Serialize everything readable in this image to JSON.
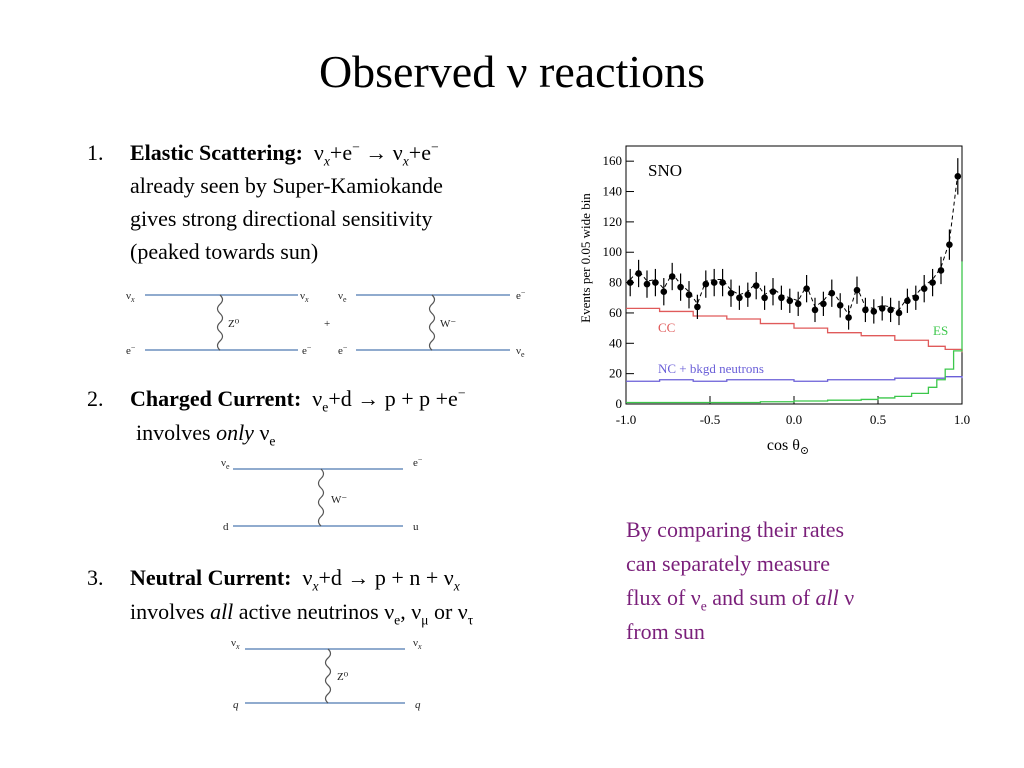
{
  "title": "Observed ν reactions",
  "items": [
    {
      "num": "1.",
      "heading": "Elastic Scattering:",
      "eq": [
        "ν",
        "x",
        "+e",
        "−",
        " → ν",
        "x",
        "+e",
        "−"
      ],
      "lines": [
        "already seen by Super-Kamiokande",
        "gives strong directional sensitivity",
        "(peaked towards sun)"
      ]
    },
    {
      "num": "2.",
      "heading": "Charged Current:",
      "eq": [
        "ν",
        "e",
        "+d → p + p +e",
        "−"
      ],
      "line_pre": "involves ",
      "line_em": "only",
      "line_nu": " ν",
      "line_sub": "e"
    },
    {
      "num": "3.",
      "heading": "Neutral Current:",
      "eq": [
        "ν",
        "x",
        "+d → p + n + ν",
        "x"
      ],
      "line_pre": "involves ",
      "line_em": "all",
      "line_post": " active neutrinos ν",
      "s1": "e",
      "c1": ", ν",
      "s2": "μ",
      "c2": " or ν",
      "s3": "τ"
    }
  ],
  "diagrams": {
    "es_z": {
      "tl": "ν",
      "tl_s": "x",
      "tr": "ν",
      "tr_s": "x",
      "bl": "e",
      "bl_s": "−",
      "br": "e",
      "br_s": "−",
      "boson": "Z⁰"
    },
    "plus": "+",
    "es_w": {
      "tl": "ν",
      "tl_s": "e",
      "tr": "e",
      "tr_s": "−",
      "bl": "e",
      "bl_s": "−",
      "br": "ν",
      "br_s": "e",
      "boson": "W⁻"
    },
    "cc": {
      "tl": "ν",
      "tl_s": "e",
      "tr": "e",
      "tr_s": "−",
      "bl": "d",
      "br": "u",
      "boson": "W⁻"
    },
    "nc": {
      "tl": "ν",
      "tl_s": "x",
      "tr": "ν",
      "tr_s": "x",
      "bl": "q",
      "br": "q",
      "boson": "Z⁰"
    }
  },
  "chart_data": {
    "type": "scatter",
    "title": "SNO",
    "xlabel": "cos θ",
    "xlabel_sub": "⊙",
    "ylabel": "Events per 0.05 wide bin",
    "xlim": [
      -1.0,
      1.0
    ],
    "ylim": [
      0,
      170
    ],
    "xticks": [
      "-1.0",
      "-0.5",
      "0.0",
      "0.5",
      "1.0"
    ],
    "yticks": [
      "0",
      "20",
      "40",
      "60",
      "80",
      "100",
      "120",
      "140",
      "160"
    ],
    "series": [
      {
        "name": "data",
        "x": [
          -0.975,
          -0.925,
          -0.875,
          -0.825,
          -0.775,
          -0.725,
          -0.675,
          -0.625,
          -0.575,
          -0.525,
          -0.475,
          -0.425,
          -0.375,
          -0.325,
          -0.275,
          -0.225,
          -0.175,
          -0.125,
          -0.075,
          -0.025,
          0.025,
          0.075,
          0.125,
          0.175,
          0.225,
          0.275,
          0.325,
          0.375,
          0.425,
          0.475,
          0.525,
          0.575,
          0.625,
          0.675,
          0.725,
          0.775,
          0.825,
          0.875,
          0.925,
          0.975
        ],
        "values": [
          80,
          86,
          79,
          80,
          74,
          84,
          77,
          72,
          64,
          79,
          80,
          80,
          73,
          70,
          72,
          78,
          70,
          74,
          70,
          68,
          66,
          76,
          62,
          66,
          73,
          65,
          57,
          75,
          62,
          61,
          63,
          62,
          60,
          68,
          70,
          76,
          80,
          88,
          105,
          150
        ],
        "errors": [
          9,
          9,
          9,
          9,
          9,
          9,
          9,
          9,
          8,
          9,
          9,
          9,
          9,
          8,
          8,
          9,
          8,
          9,
          8,
          8,
          8,
          9,
          8,
          8,
          9,
          8,
          8,
          9,
          8,
          8,
          8,
          8,
          8,
          8,
          8,
          9,
          9,
          9,
          10,
          12
        ]
      },
      {
        "name": "CC",
        "x": [
          -1.0,
          -0.8,
          -0.6,
          -0.4,
          -0.2,
          0.0,
          0.2,
          0.4,
          0.6,
          0.8,
          0.9,
          1.0
        ],
        "values": [
          63,
          61,
          58,
          56,
          53,
          50,
          47,
          45,
          42,
          38,
          36,
          34
        ]
      },
      {
        "name": "NC + bkgd neutrons",
        "x": [
          -1.0,
          -0.8,
          -0.6,
          -0.4,
          -0.2,
          0.0,
          0.2,
          0.4,
          0.6,
          0.8,
          0.9,
          1.0
        ],
        "values": [
          15,
          16,
          15,
          16,
          16,
          15,
          16,
          16,
          17,
          17,
          18,
          17
        ]
      },
      {
        "name": "ES",
        "x": [
          -1.0,
          -0.8,
          -0.6,
          -0.4,
          -0.2,
          0.0,
          0.2,
          0.4,
          0.5,
          0.6,
          0.7,
          0.8,
          0.85,
          0.9,
          0.95,
          1.0
        ],
        "values": [
          1,
          1,
          1,
          1,
          1.5,
          2,
          2.5,
          3,
          4,
          5,
          7,
          11,
          16,
          23,
          35,
          94
        ]
      }
    ],
    "colors": {
      "CC": "#e05a5a",
      "NC + bkgd neutrons": "#6a5fd8",
      "ES": "#3cc74b",
      "data": "#000000"
    }
  },
  "note": [
    "By comparing their rates",
    "can separately measure",
    "flux of ν",
    "e",
    " and sum of ",
    "all",
    " ν",
    "from sun"
  ]
}
